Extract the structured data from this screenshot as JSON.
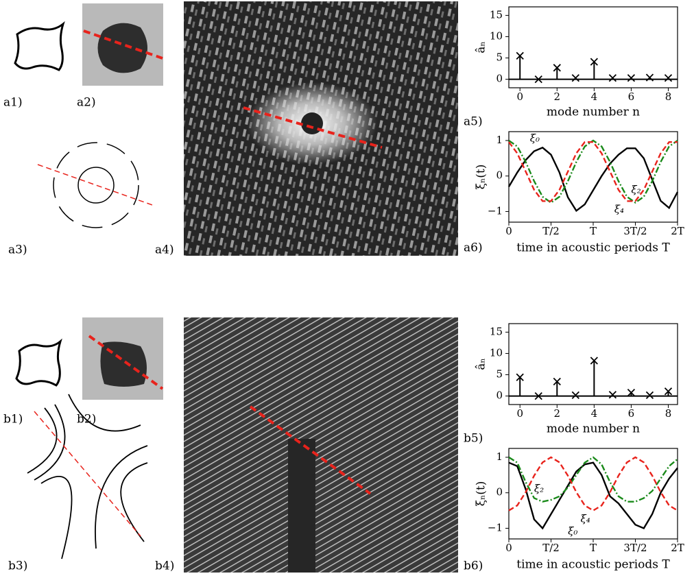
{
  "panels": [
    "a1)",
    "a2)",
    "a3)",
    "a4)",
    "a5)",
    "a6)",
    "b1)",
    "b2)",
    "b3)",
    "b4)",
    "b5)",
    "b6)"
  ],
  "chart_data": [
    {
      "type": "stem",
      "xlabel": "mode number n",
      "ylabel": "âₙ",
      "color": "#000000",
      "x": [
        0,
        1,
        2,
        3,
        4,
        5,
        6,
        7,
        8
      ],
      "values": [
        5.5,
        0,
        2.7,
        0.3,
        4.1,
        0.3,
        0.3,
        0.4,
        0.3
      ],
      "xlim": [
        -0.6,
        8.5
      ],
      "ylim": [
        -2,
        17
      ],
      "xticks": [
        0,
        2,
        4,
        6,
        8
      ],
      "yticks": [
        0,
        5,
        10,
        15
      ]
    },
    {
      "type": "line",
      "xlabel": "time in acoustic periods T",
      "ylabel": "ξₙ(t)",
      "x": [
        0,
        0.1,
        0.2,
        0.3,
        0.4,
        0.5,
        0.6,
        0.7,
        0.8,
        0.9,
        1,
        1.1,
        1.2,
        1.3,
        1.4,
        1.5,
        1.6,
        1.7,
        1.8,
        1.9,
        2
      ],
      "series": [
        {
          "name": "ξ₀",
          "color": "#000000",
          "dash": "none",
          "values": [
            -0.3,
            0.1,
            0.45,
            0.7,
            0.8,
            0.6,
            0.1,
            -0.6,
            -0.98,
            -0.8,
            -0.4,
            0,
            0.35,
            0.6,
            0.78,
            0.78,
            0.5,
            -0.1,
            -0.7,
            -0.9,
            -0.45
          ]
        },
        {
          "name": "ξ₂",
          "color": "#1a8a1a",
          "dash": "9 3 2 3",
          "values": [
            1,
            0.833,
            0.395,
            -0.145,
            -0.583,
            -0.75,
            -0.583,
            -0.145,
            0.395,
            0.833,
            1,
            0.833,
            0.395,
            -0.145,
            -0.583,
            -0.75,
            -0.583,
            -0.145,
            0.395,
            0.833,
            1
          ]
        },
        {
          "name": "ξ₄",
          "color": "#e8231c",
          "dash": "8 4",
          "values": [
            0.957,
            0.64,
            0.125,
            -0.39,
            -0.707,
            -0.707,
            -0.39,
            0.125,
            0.64,
            0.957,
            0.957,
            0.64,
            0.125,
            -0.39,
            -0.707,
            -0.707,
            -0.39,
            0.125,
            0.64,
            0.957,
            0.957
          ]
        }
      ],
      "xlim": [
        0,
        2
      ],
      "ylim": [
        -1.3,
        1.25
      ],
      "xticks": [
        0,
        {
          "value": 0.5,
          "label": "T/2"
        },
        {
          "value": 1,
          "label": "T"
        },
        {
          "value": 1.5,
          "label": "3T/2"
        },
        {
          "value": 2,
          "label": "2T"
        }
      ],
      "yticks": [
        {
          "value": -1,
          "label": "−1"
        },
        0,
        1
      ]
    },
    {
      "type": "stem",
      "xlabel": "mode number n",
      "ylabel": "âₙ",
      "color": "#000000",
      "x": [
        0,
        1,
        2,
        3,
        4,
        5,
        6,
        7,
        8
      ],
      "values": [
        4.4,
        0,
        3.4,
        0.2,
        8.3,
        0.3,
        0.8,
        0.2,
        1.1
      ],
      "xlim": [
        -0.6,
        8.5
      ],
      "ylim": [
        -2,
        17
      ],
      "xticks": [
        0,
        2,
        4,
        6,
        8
      ],
      "yticks": [
        0,
        5,
        10,
        15
      ]
    },
    {
      "type": "line",
      "xlabel": "time in acoustic periods T",
      "ylabel": "ξₙ(t)",
      "x": [
        0,
        0.1,
        0.2,
        0.3,
        0.4,
        0.5,
        0.6,
        0.7,
        0.8,
        0.9,
        1,
        1.1,
        1.2,
        1.3,
        1.4,
        1.5,
        1.6,
        1.7,
        1.8,
        1.9,
        2
      ],
      "series": [
        {
          "name": "ξ₀",
          "color": "#000000",
          "dash": "none",
          "values": [
            0.85,
            0.75,
            0.1,
            -0.75,
            -1,
            -0.6,
            -0.2,
            0.2,
            0.6,
            0.8,
            0.85,
            0.5,
            -0.1,
            -0.3,
            -0.6,
            -0.9,
            -1,
            -0.6,
            0,
            0.4,
            0.7
          ]
        },
        {
          "name": "ξ₂",
          "color": "#1a8a1a",
          "dash": "9 3 2 3",
          "values": [
            1,
            0.85,
            0.3,
            -0.15,
            -0.25,
            -0.2,
            -0.1,
            0.15,
            0.5,
            0.85,
            1,
            0.8,
            0.3,
            -0.1,
            -0.25,
            -0.25,
            -0.15,
            0.05,
            0.4,
            0.75,
            0.95
          ]
        },
        {
          "name": "ξ₄",
          "color": "#e8231c",
          "dash": "8 4",
          "values": [
            -0.5,
            -0.357,
            0.018,
            0.482,
            0.857,
            1,
            0.857,
            0.482,
            0.018,
            -0.357,
            -0.5,
            -0.357,
            0.018,
            0.482,
            0.857,
            1,
            0.857,
            0.482,
            0.018,
            -0.357,
            -0.5
          ]
        }
      ],
      "xlim": [
        0,
        2
      ],
      "ylim": [
        -1.3,
        1.25
      ],
      "xticks": [
        0,
        {
          "value": 0.5,
          "label": "T/2"
        },
        {
          "value": 1,
          "label": "T"
        },
        {
          "value": 1.5,
          "label": "3T/2"
        },
        {
          "value": 2,
          "label": "2T"
        }
      ],
      "yticks": [
        {
          "value": -1,
          "label": "−1"
        },
        0,
        1
      ]
    }
  ]
}
